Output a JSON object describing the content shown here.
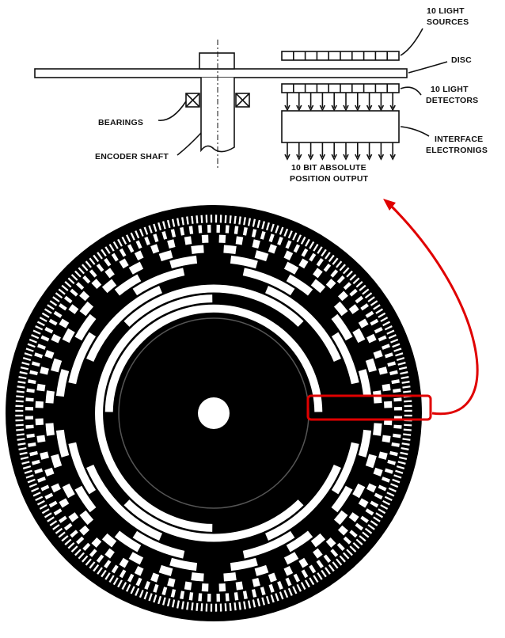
{
  "schematic": {
    "light_sources": [
      "10 LIGHT",
      "SOURCES"
    ],
    "disc": "DISC",
    "light_detectors": [
      "10 LIGHT",
      "DETECTORS"
    ],
    "interface": [
      "INTERFACE",
      "ELECTRONIGS"
    ],
    "bearings": "BEARINGS",
    "shaft": "ENCODER SHAFT",
    "output": [
      "10 BIT ABSOLUTE",
      "POSITION OUTPUT"
    ]
  },
  "encoder_disc": {
    "bits": 10,
    "bit_sequence": "MSB-to-LSB from inner track to outer track",
    "colors": {
      "disc": "#000000",
      "slots": "#ffffff",
      "highlight": "#e00000"
    }
  }
}
